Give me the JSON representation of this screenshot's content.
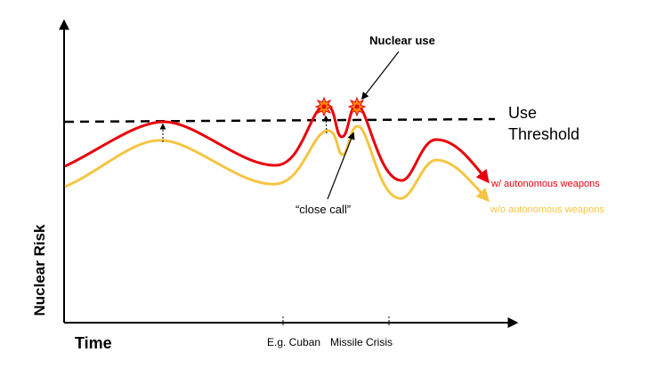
{
  "chart_data": {
    "type": "line",
    "title": "",
    "xlabel": "Time",
    "ylabel": "Nuclear Risk",
    "threshold": {
      "label_line1": "Use",
      "label_line2": "Threshold",
      "style": "dashed",
      "color": "#000000"
    },
    "series": [
      {
        "name": "w/ autonomous weapons",
        "color": "#e8000b"
      },
      {
        "name": "w/o autonomous weapons",
        "color": "#f5c542"
      }
    ],
    "annotations": {
      "nuclear_use": "Nuclear use",
      "close_call": "“close call”",
      "event_prefix": "E.g. Cuban",
      "event_suffix": "Missile Crisis"
    },
    "marker_colors": {
      "burst": "#ff8c00",
      "burst_edge": "#e8000b"
    }
  }
}
